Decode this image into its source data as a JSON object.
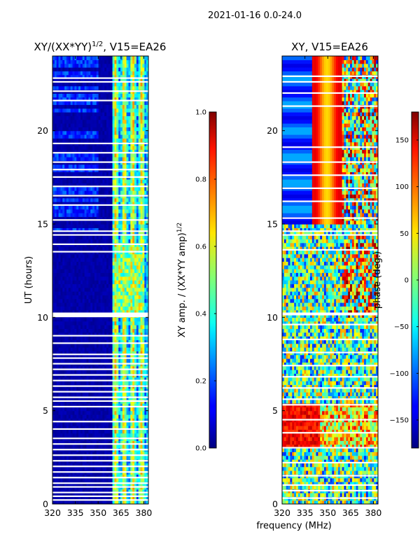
{
  "suptitle": "2021-01-16 0.0-24.0",
  "chart_data": [
    {
      "type": "heatmap",
      "title": "XY/(XX*YY)1/2, V15=EA26",
      "title_main": "XY/(XX*YY)",
      "title_sup": "1/2",
      "title_rest": ", V15=EA26",
      "xlabel": "",
      "ylabel": "UT (hours)",
      "xlim": [
        320,
        383
      ],
      "ylim": [
        0,
        24
      ],
      "xticks": [
        320,
        335,
        350,
        365,
        380
      ],
      "yticks": [
        0,
        5,
        10,
        15,
        20
      ],
      "colorbar": {
        "label": "XY amp. / (XX*YY amp)1/2",
        "label_main": "XY amp. / (XX*YY amp)",
        "label_sup": "1/2",
        "range": [
          0.0,
          1.0
        ],
        "ticks": [
          0.0,
          0.2,
          0.4,
          0.6,
          0.8,
          1.0
        ],
        "tick_labels": [
          "0.0",
          "0.2",
          "0.4",
          "0.6",
          "0.8",
          "1.0"
        ],
        "colormap": "jet"
      },
      "blank_hours": [
        0.2,
        0.4,
        0.6,
        0.9,
        1.1,
        1.4,
        1.7,
        2.0,
        2.3,
        2.6,
        2.9,
        3.2,
        3.5,
        4.0,
        4.4,
        5.2,
        5.5,
        5.7,
        6.0,
        6.3,
        6.6,
        6.9,
        7.2,
        7.5,
        7.8,
        8.0,
        8.6,
        9.0,
        10.1,
        10.2,
        13.5,
        13.9,
        14.4,
        14.6,
        15.2,
        16.0,
        16.5,
        17.0,
        17.5,
        17.9,
        18.3,
        18.8,
        19.3,
        21.6,
        22.1,
        22.6,
        22.8
      ]
    },
    {
      "type": "heatmap",
      "title": "XY, V15=EA26",
      "xlabel": "frequency (MHz)",
      "ylabel": "",
      "xlim": [
        320,
        383
      ],
      "ylim": [
        0,
        24
      ],
      "xticks": [
        320,
        335,
        350,
        365,
        380
      ],
      "yticks": [
        0,
        5,
        10,
        15,
        20
      ],
      "colorbar": {
        "label": "phase (deg.)",
        "range": [
          -180,
          180
        ],
        "ticks": [
          -150,
          -100,
          -50,
          0,
          50,
          100,
          150
        ],
        "tick_labels": [
          "−150",
          "−100",
          "−50",
          "0",
          "50",
          "100",
          "150"
        ],
        "colormap": "jet"
      },
      "blank_hours": [
        0.3,
        0.7,
        1.0,
        1.5,
        2.2,
        3.0,
        3.8,
        4.5,
        5.3,
        5.6,
        6.2,
        6.8,
        7.4,
        8.1,
        8.8,
        9.6,
        10.2,
        13.6,
        14.4,
        14.6,
        15.3,
        16.2,
        16.9,
        17.6,
        18.3,
        19.1,
        21.3,
        22.0,
        22.6,
        22.9
      ]
    }
  ]
}
